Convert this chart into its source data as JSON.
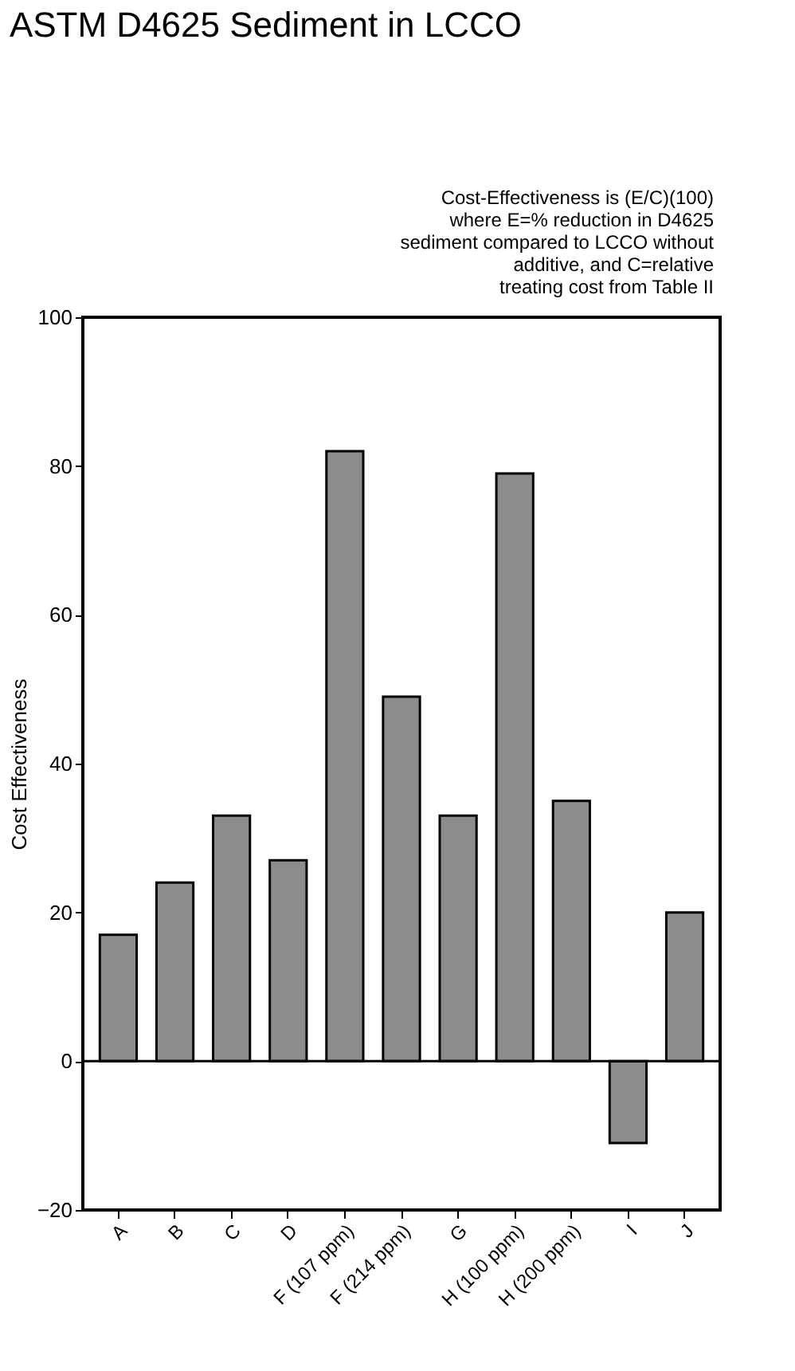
{
  "chart_data": {
    "type": "bar",
    "title": "ASTM D4625 Sediment in LCCO",
    "ylabel": "Cost Effectiveness",
    "categories": [
      "A",
      "B",
      "C",
      "D",
      "F (107 ppm)",
      "F (214 ppm)",
      "G",
      "H (100 ppm)",
      "H (200 ppm)",
      "I",
      "J"
    ],
    "values": [
      17,
      24,
      33,
      27,
      82,
      49,
      33,
      79,
      35,
      -11,
      20
    ],
    "color": "#8c8c8c",
    "ylim": [
      -20,
      100
    ],
    "yticks": [
      -20,
      0,
      20,
      40,
      60,
      80,
      100
    ],
    "ref_lines": [
      {
        "axis": "y",
        "value": 0
      }
    ],
    "annotations": [
      "Cost-Effectiveness is (E/C)(100)\nwhere E=% reduction in D4625\nsediment compared to LCCO without\nadditive, and C=relative\ntreating cost from Table II"
    ],
    "grid": false
  }
}
